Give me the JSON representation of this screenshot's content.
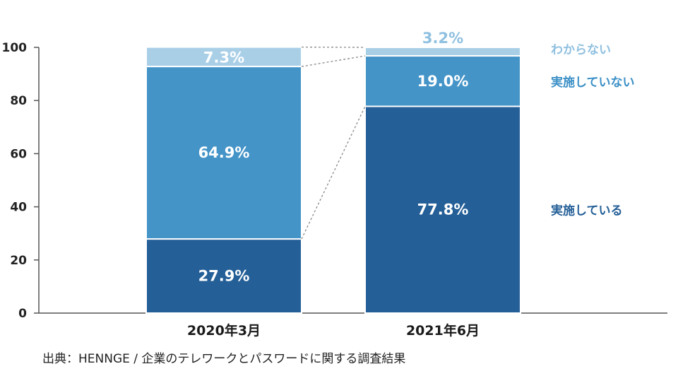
{
  "chart_data": {
    "type": "bar",
    "stacked": true,
    "categories": [
      "2020年3月",
      "2021年6月"
    ],
    "series": [
      {
        "name": "実施している",
        "values": [
          27.9,
          77.8
        ],
        "labels": [
          "27.9%",
          "77.8%"
        ],
        "color": "#245f97",
        "label_color": "#ffffff",
        "legend_color": "#245f97"
      },
      {
        "name": "実施していない",
        "values": [
          64.9,
          19.0
        ],
        "labels": [
          "64.9%",
          "19.0%"
        ],
        "color": "#4494c8",
        "label_color": "#ffffff",
        "legend_color": "#3a8fc6"
      },
      {
        "name": "わからない",
        "values": [
          7.3,
          3.2
        ],
        "labels": [
          "7.3%",
          "3.2%"
        ],
        "color": "#a9cfe7",
        "label_color": "#ffffff",
        "legend_color": "#8fc0e0"
      }
    ],
    "y_ticks": [
      "0",
      "20",
      "40",
      "60",
      "80",
      "100"
    ],
    "ylim": [
      0,
      100
    ],
    "grid": false,
    "legend_position": "right"
  },
  "source": "出典：HENNGE / 企業のテレワークとパスワードに関する調査結果"
}
